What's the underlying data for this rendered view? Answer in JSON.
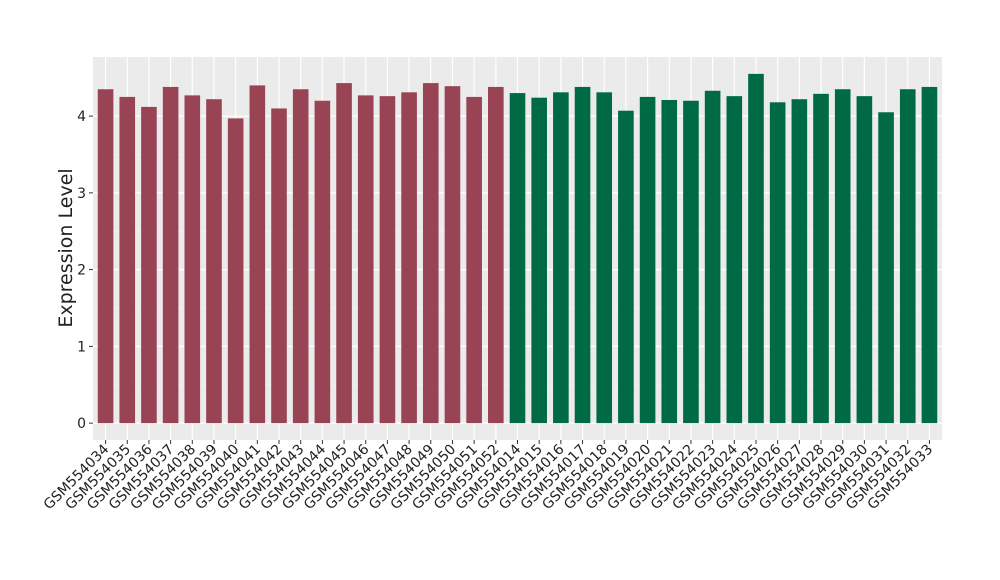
{
  "chart_data": {
    "type": "bar",
    "y_label": "Expression Level",
    "categories": [
      "GSM554034",
      "GSM554035",
      "GSM554036",
      "GSM554037",
      "GSM554038",
      "GSM554039",
      "GSM554040",
      "GSM554041",
      "GSM554042",
      "GSM554043",
      "GSM554044",
      "GSM554045",
      "GSM554046",
      "GSM554047",
      "GSM554048",
      "GSM554049",
      "GSM554050",
      "GSM554051",
      "GSM554052",
      "GSM554014",
      "GSM554015",
      "GSM554016",
      "GSM554017",
      "GSM554018",
      "GSM554019",
      "GSM554020",
      "GSM554021",
      "GSM554022",
      "GSM554023",
      "GSM554024",
      "GSM554025",
      "GSM554026",
      "GSM554027",
      "GSM554028",
      "GSM554029",
      "GSM554030",
      "GSM554031",
      "GSM554032",
      "GSM554033"
    ],
    "values": [
      4.35,
      4.25,
      4.12,
      4.38,
      4.27,
      4.22,
      3.97,
      4.4,
      4.1,
      4.35,
      4.2,
      4.43,
      4.27,
      4.26,
      4.31,
      4.43,
      4.39,
      4.25,
      4.38,
      4.3,
      4.24,
      4.31,
      4.38,
      4.31,
      4.07,
      4.25,
      4.21,
      4.2,
      4.33,
      4.26,
      4.55,
      4.18,
      4.22,
      4.29,
      4.35,
      4.26,
      4.05,
      4.35,
      4.38
    ],
    "colors": [
      "#994455",
      "#994455",
      "#994455",
      "#994455",
      "#994455",
      "#994455",
      "#994455",
      "#994455",
      "#994455",
      "#994455",
      "#994455",
      "#994455",
      "#994455",
      "#994455",
      "#994455",
      "#994455",
      "#994455",
      "#994455",
      "#994455",
      "#006a44",
      "#006a44",
      "#006a44",
      "#006a44",
      "#006a44",
      "#006a44",
      "#006a44",
      "#006a44",
      "#006a44",
      "#006a44",
      "#006a44",
      "#006a44",
      "#006a44",
      "#006a44",
      "#006a44",
      "#006a44",
      "#006a44",
      "#006a44",
      "#006a44",
      "#006a44"
    ],
    "ylim": [
      -0.22,
      4.77
    ],
    "yticks": [
      0,
      1,
      2,
      3,
      4
    ],
    "grid": true
  }
}
